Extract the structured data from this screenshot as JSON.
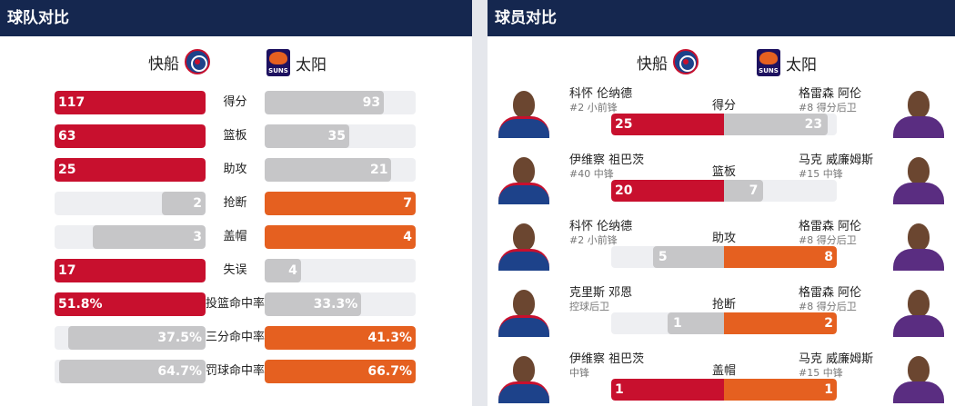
{
  "team_compare": {
    "title": "球队对比",
    "home_team": "快船",
    "away_team": "太阳",
    "home_logo_icon": "clippers-logo-icon",
    "away_logo_icon": "suns-logo-icon",
    "colors": {
      "home": "#c8102e",
      "away": "#e56020",
      "loser": "#c6c6c8"
    },
    "stats": [
      {
        "label": "得分",
        "home": "117",
        "away": "93",
        "home_pct": 1.0,
        "away_pct": 0.79,
        "leader": "home"
      },
      {
        "label": "篮板",
        "home": "63",
        "away": "35",
        "home_pct": 1.0,
        "away_pct": 0.56,
        "leader": "home"
      },
      {
        "label": "助攻",
        "home": "25",
        "away": "21",
        "home_pct": 1.0,
        "away_pct": 0.84,
        "leader": "home"
      },
      {
        "label": "抢断",
        "home": "2",
        "away": "7",
        "home_pct": 0.29,
        "away_pct": 1.0,
        "leader": "away"
      },
      {
        "label": "盖帽",
        "home": "3",
        "away": "4",
        "home_pct": 0.75,
        "away_pct": 1.0,
        "leader": "away"
      },
      {
        "label": "失误",
        "home": "17",
        "away": "4",
        "home_pct": 1.0,
        "away_pct": 0.24,
        "leader": "home"
      },
      {
        "label": "投篮命中率",
        "home": "51.8%",
        "away": "33.3%",
        "home_pct": 1.0,
        "away_pct": 0.64,
        "leader": "home"
      },
      {
        "label": "三分命中率",
        "home": "37.5%",
        "away": "41.3%",
        "home_pct": 0.91,
        "away_pct": 1.0,
        "leader": "away"
      },
      {
        "label": "罚球命中率",
        "home": "64.7%",
        "away": "66.7%",
        "home_pct": 0.97,
        "away_pct": 1.0,
        "leader": "away"
      }
    ]
  },
  "player_compare": {
    "title": "球员对比",
    "home_team": "快船",
    "away_team": "太阳",
    "rows": [
      {
        "label": "得分",
        "home_name": "科怀 伦纳德",
        "home_pos": "#2 小前锋",
        "away_name": "格雷森 阿伦",
        "away_pos": "#8 得分后卫",
        "home": "25",
        "away": "23",
        "home_pct": 1.0,
        "away_pct": 0.92,
        "leader": "home"
      },
      {
        "label": "篮板",
        "home_name": "伊维察 祖巴茨",
        "home_pos": "#40 中锋",
        "away_name": "马克 威廉姆斯",
        "away_pos": "#15 中锋",
        "home": "20",
        "away": "7",
        "home_pct": 1.0,
        "away_pct": 0.35,
        "leader": "home"
      },
      {
        "label": "助攻",
        "home_name": "科怀 伦纳德",
        "home_pos": "#2 小前锋",
        "away_name": "格雷森 阿伦",
        "away_pos": "#8 得分后卫",
        "home": "5",
        "away": "8",
        "home_pct": 0.63,
        "away_pct": 1.0,
        "leader": "away"
      },
      {
        "label": "抢断",
        "home_name": "克里斯 邓恩",
        "home_pos": "控球后卫",
        "away_name": "格雷森 阿伦",
        "away_pos": "#8 得分后卫",
        "home": "1",
        "away": "2",
        "home_pct": 0.5,
        "away_pct": 1.0,
        "leader": "away"
      },
      {
        "label": "盖帽",
        "home_name": "伊维察 祖巴茨",
        "home_pos": "中锋",
        "away_name": "马克 威廉姆斯",
        "away_pos": "#15 中锋",
        "home": "1",
        "away": "1",
        "home_pct": 1.0,
        "away_pct": 1.0,
        "leader": "both"
      }
    ]
  }
}
